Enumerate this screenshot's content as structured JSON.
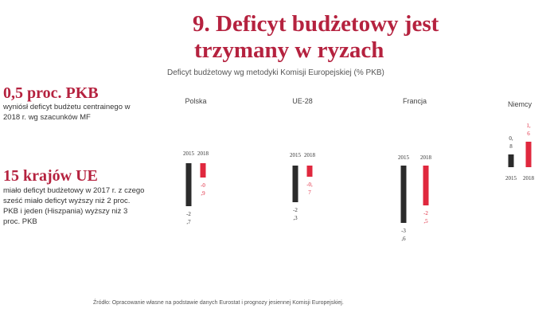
{
  "title": {
    "line1": "9. Deficyt budżetowy jest",
    "line2": "trzymany w ryzach"
  },
  "subtitle": "Deficyt budżetowy wg metodyki Komisji Europejskiej (% PKB)",
  "kpis": [
    {
      "value": "0,5 proc. PKB",
      "description": "wyniósł deficyt budżetu centrainego w 2018 r. wg szacunków MF"
    },
    {
      "value": "15 krajów UE",
      "description": "miało deficyt budżetowy w 2017 r. z czego sześć miało deficyt wyższy niż 2 proc. PKB i jeden (Hiszpania) wyższy niż 3 proc. PKB"
    }
  ],
  "source": "Źródło: Opracowanie własne na podstawie danych Eurostat i prognozy jesiennej Komisji Europejskiej.",
  "colors": {
    "accent": "#b5223f",
    "bar2015": "#2b2b2b",
    "bar2018": "#e0283e"
  },
  "chart_data": {
    "type": "bar",
    "categories": [
      "Polska",
      "UE-28",
      "Francja",
      "Niemcy"
    ],
    "series": [
      {
        "name": "2015",
        "values": [
          -2.7,
          -2.3,
          -3.6,
          0.8
        ]
      },
      {
        "name": "2018",
        "values": [
          -0.9,
          -0.7,
          -2.5,
          1.6
        ]
      }
    ],
    "labels": {
      "2015": [
        "-2\n,7",
        "-2\n,3",
        "-3\n,6",
        "0,\n8"
      ],
      "2018": [
        "-0\n,9",
        "-0,\n7",
        "-2\n,5",
        "1,\n6"
      ]
    },
    "xlabel": "",
    "ylabel": ""
  }
}
